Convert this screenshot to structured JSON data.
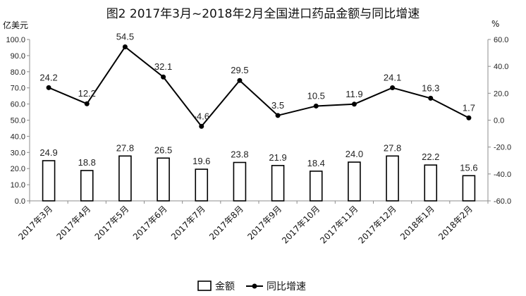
{
  "chart_data": {
    "type": "bar",
    "title": "图2  2017年3月~2018年2月全国进口药品金额与同比增速",
    "ylabel_left": "亿美元",
    "ylabel_right": "%",
    "categories": [
      "2017年3月",
      "2017年4月",
      "2017年5月",
      "2017年6月",
      "2017年7月",
      "2017年8月",
      "2017年9月",
      "2017年10月",
      "2017年11月",
      "2017年12月",
      "2018年1月",
      "2018年2月"
    ],
    "ylim_left": [
      0,
      100
    ],
    "yticks_left": [
      "0.0",
      "10.0",
      "20.0",
      "30.0",
      "40.0",
      "50.0",
      "60.0",
      "70.0",
      "80.0",
      "90.0",
      "100.0"
    ],
    "ylim_right": [
      -60,
      60
    ],
    "yticks_right": [
      "-60.0",
      "-40.0",
      "-20.0",
      "0.0",
      "20.0",
      "40.0",
      "60.0"
    ],
    "series": [
      {
        "name": "金额",
        "type": "bar",
        "axis": "left",
        "values": [
          24.9,
          18.8,
          27.8,
          26.5,
          19.6,
          23.8,
          21.9,
          18.4,
          24.0,
          27.8,
          22.2,
          15.6
        ],
        "labels": [
          "24.9",
          "18.8",
          "27.8",
          "26.5",
          "19.6",
          "23.8",
          "21.9",
          "18.4",
          "24.0",
          "27.8",
          "22.2",
          "15.6"
        ]
      },
      {
        "name": "同比增速",
        "type": "line",
        "axis": "right",
        "values": [
          24.2,
          12.2,
          54.5,
          32.1,
          -4.6,
          29.5,
          3.5,
          10.5,
          11.9,
          24.1,
          16.3,
          1.7
        ],
        "labels": [
          "24.2",
          "12.2",
          "54.5",
          "32.1",
          "-4.6",
          "29.5",
          "3.5",
          "10.5",
          "11.9",
          "24.1",
          "16.3",
          "1.7"
        ]
      }
    ],
    "legend_position": "bottom",
    "grid": false
  },
  "colors": {
    "bar_fill": "#ffffff",
    "bar_stroke": "#000000",
    "line": "#000000",
    "axis": "#8c8c8c"
  }
}
